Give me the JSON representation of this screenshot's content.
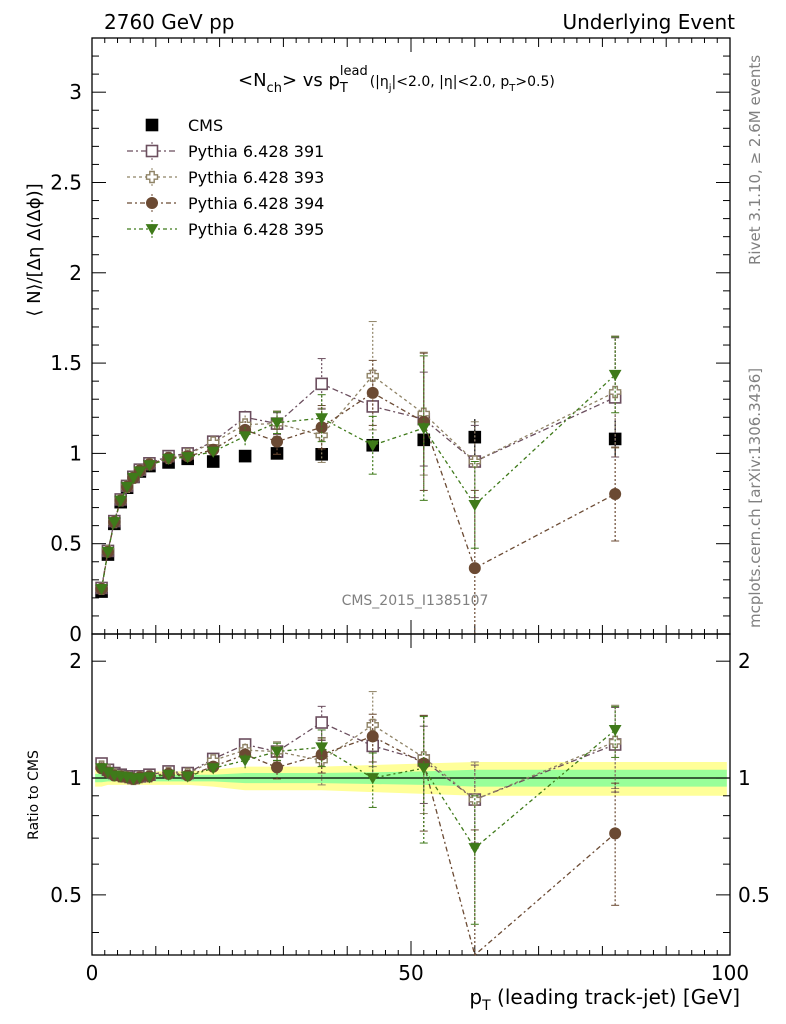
{
  "header": {
    "left": "2760 GeV pp",
    "right": "Underlying Event"
  },
  "plot_title": {
    "prefix": "<N",
    "prefix_sub": "ch",
    "mid": "> vs p",
    "p_sub": "T",
    "p_sup": "lead",
    "cuts_a": "(|η",
    "cuts_a_sub": "j",
    "cuts_b": "|<2.0, |η|<2.0, p",
    "cuts_b_sub": "T",
    "cuts_c": ">0.5)"
  },
  "side_labels": {
    "rivet": "Rivet 3.1.10, ≥ 2.6M events",
    "mcplots": "mcplots.cern.ch [arXiv:1306.3436]"
  },
  "watermark": "CMS_2015_I1385107",
  "colors": {
    "cms": "#000000",
    "p391": "#6b4e5e",
    "p393": "#8f8366",
    "p394": "#6b4a33",
    "p395": "#3f7a1a",
    "band_inner": "#99ff99",
    "band_outer": "#ffff99"
  },
  "chart_data": [
    {
      "type": "scatter",
      "panel": "main",
      "ylabel": "⟨ N⟩/[Δη Δ(Δϕ)]",
      "xlim": [
        0,
        100
      ],
      "ylim": [
        0,
        3.3
      ],
      "yticks": [
        0,
        0.5,
        1,
        1.5,
        2,
        2.5,
        3
      ],
      "ytick_labels": [
        "0",
        "0.5",
        "1",
        "1.5",
        "2",
        "2.5",
        "3"
      ],
      "x": [
        1.5,
        2.5,
        3.5,
        4.5,
        5.5,
        6.5,
        7.5,
        9,
        12,
        15,
        19,
        24,
        29,
        36,
        44,
        52,
        60,
        82
      ],
      "legend_position": "top-left",
      "series": [
        {
          "name": "CMS",
          "key": "cms",
          "marker": "filled-square",
          "values": [
            0.235,
            0.44,
            0.61,
            0.73,
            0.81,
            0.87,
            0.9,
            0.93,
            0.95,
            0.97,
            0.955,
            0.985,
            1.0,
            0.995,
            1.045,
            1.075,
            1.09,
            1.08
          ],
          "errors": [
            0.01,
            0.01,
            0.01,
            0.01,
            0.01,
            0.01,
            0.01,
            0.01,
            0.01,
            0.01,
            0.01,
            0.02,
            0.02,
            0.02,
            0.03,
            0.05,
            0.1,
            0.1
          ]
        },
        {
          "name": "Pythia 6.428 391",
          "key": "p391",
          "marker": "open-square",
          "values": [
            0.255,
            0.46,
            0.625,
            0.745,
            0.82,
            0.87,
            0.91,
            0.945,
            0.985,
            1.0,
            1.065,
            1.2,
            1.165,
            1.385,
            1.26,
            1.19,
            0.955,
            1.31
          ],
          "errors": [
            0.01,
            0.01,
            0.01,
            0.01,
            0.01,
            0.01,
            0.01,
            0.01,
            0.02,
            0.02,
            0.03,
            0.04,
            0.06,
            0.14,
            0.2,
            0.26,
            0.2,
            0.33
          ]
        },
        {
          "name": "Pythia 6.428 393",
          "key": "p393",
          "marker": "open-cross",
          "values": [
            0.25,
            0.46,
            0.62,
            0.74,
            0.815,
            0.865,
            0.905,
            0.94,
            0.975,
            0.995,
            1.06,
            1.16,
            1.165,
            1.1,
            1.43,
            1.22,
            0.955,
            1.34
          ],
          "errors": [
            0.01,
            0.01,
            0.01,
            0.01,
            0.01,
            0.01,
            0.01,
            0.01,
            0.02,
            0.02,
            0.03,
            0.05,
            0.07,
            0.15,
            0.3,
            0.34,
            0.22,
            0.31
          ]
        },
        {
          "name": "Pythia 6.428 394",
          "key": "p394",
          "marker": "filled-circle",
          "values": [
            0.25,
            0.455,
            0.62,
            0.74,
            0.815,
            0.865,
            0.905,
            0.94,
            0.975,
            0.985,
            1.02,
            1.13,
            1.065,
            1.145,
            1.335,
            1.175,
            0.365,
            0.775
          ],
          "errors": [
            0.01,
            0.01,
            0.01,
            0.01,
            0.01,
            0.01,
            0.01,
            0.01,
            0.02,
            0.02,
            0.03,
            0.05,
            0.07,
            0.12,
            0.18,
            0.38,
            0.43,
            0.26
          ]
        },
        {
          "name": "Pythia 6.428 395",
          "key": "p395",
          "marker": "filled-triangle-down",
          "values": [
            0.25,
            0.455,
            0.62,
            0.74,
            0.815,
            0.865,
            0.9,
            0.935,
            0.97,
            0.98,
            1.01,
            1.095,
            1.17,
            1.195,
            1.045,
            1.14,
            0.715,
            1.435
          ],
          "errors": [
            0.01,
            0.01,
            0.01,
            0.01,
            0.01,
            0.01,
            0.01,
            0.01,
            0.02,
            0.02,
            0.03,
            0.05,
            0.06,
            0.13,
            0.16,
            0.4,
            0.24,
            0.21
          ]
        }
      ]
    },
    {
      "type": "scatter",
      "panel": "ratio",
      "ylabel": "Ratio to CMS",
      "xlabel": "p_T (leading track-jet) [GeV]",
      "xlim": [
        0,
        100
      ],
      "ylim": [
        0.35,
        2.35
      ],
      "yticks": [
        0.5,
        1,
        2
      ],
      "ytick_labels": [
        "0.5",
        "1",
        "2"
      ],
      "xticks": [
        0,
        50,
        100
      ],
      "xtick_labels": [
        "0",
        "50",
        "100"
      ],
      "log_y": true,
      "reference_line": 1,
      "band_inner_halfwidth": [
        0.025,
        0.02,
        0.02,
        0.02,
        0.02,
        0.02,
        0.02,
        0.02,
        0.02,
        0.02,
        0.02,
        0.03,
        0.03,
        0.03,
        0.035,
        0.04,
        0.05,
        0.05
      ],
      "band_outer_halfwidth": [
        0.05,
        0.04,
        0.04,
        0.04,
        0.04,
        0.04,
        0.04,
        0.04,
        0.04,
        0.04,
        0.05,
        0.07,
        0.07,
        0.07,
        0.08,
        0.09,
        0.1,
        0.1
      ],
      "x": [
        1.5,
        2.5,
        3.5,
        4.5,
        5.5,
        6.5,
        7.5,
        9,
        12,
        15,
        19,
        24,
        29,
        36,
        44,
        52,
        60,
        82
      ],
      "series": [
        {
          "key": "p391",
          "values": [
            1.09,
            1.05,
            1.03,
            1.02,
            1.01,
            1.0,
            1.01,
            1.02,
            1.04,
            1.03,
            1.12,
            1.22,
            1.17,
            1.39,
            1.21,
            1.11,
            0.88,
            1.22
          ],
          "errors": [
            0.02,
            0.02,
            0.02,
            0.02,
            0.02,
            0.02,
            0.02,
            0.02,
            0.02,
            0.02,
            0.03,
            0.04,
            0.06,
            0.14,
            0.2,
            0.25,
            0.2,
            0.3
          ]
        },
        {
          "key": "p393",
          "values": [
            1.07,
            1.045,
            1.02,
            1.01,
            1.005,
            0.995,
            1.005,
            1.01,
            1.03,
            1.025,
            1.11,
            1.18,
            1.17,
            1.11,
            1.37,
            1.13,
            0.88,
            1.24
          ],
          "errors": [
            0.02,
            0.02,
            0.02,
            0.02,
            0.02,
            0.02,
            0.02,
            0.02,
            0.02,
            0.02,
            0.03,
            0.05,
            0.07,
            0.15,
            0.3,
            0.32,
            0.22,
            0.3
          ]
        },
        {
          "key": "p394",
          "values": [
            1.06,
            1.035,
            1.015,
            1.01,
            1.005,
            0.995,
            1.005,
            1.01,
            1.025,
            1.015,
            1.07,
            1.15,
            1.065,
            1.15,
            1.28,
            1.09,
            0.335,
            0.72
          ],
          "errors": [
            0.02,
            0.02,
            0.02,
            0.02,
            0.02,
            0.02,
            0.02,
            0.02,
            0.02,
            0.02,
            0.03,
            0.05,
            0.07,
            0.12,
            0.18,
            0.36,
            0.4,
            0.25
          ]
        },
        {
          "key": "p395",
          "values": [
            1.06,
            1.035,
            1.015,
            1.01,
            1.005,
            0.995,
            1.0,
            1.005,
            1.02,
            1.01,
            1.06,
            1.11,
            1.17,
            1.2,
            1.0,
            1.06,
            0.66,
            1.33
          ],
          "errors": [
            0.02,
            0.02,
            0.02,
            0.02,
            0.02,
            0.02,
            0.02,
            0.02,
            0.02,
            0.02,
            0.03,
            0.05,
            0.06,
            0.13,
            0.16,
            0.38,
            0.24,
            0.2
          ]
        }
      ]
    }
  ]
}
